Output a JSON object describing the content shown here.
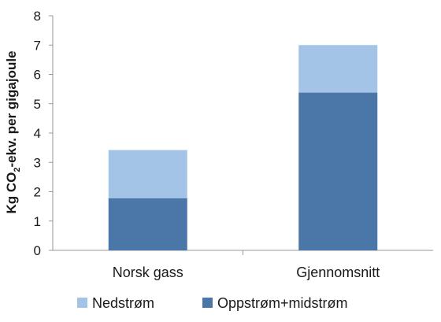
{
  "chart_data": {
    "type": "bar",
    "stacked": true,
    "categories": [
      "Norsk gass",
      "Gjennomsnitt"
    ],
    "series": [
      {
        "name": "Oppstrøm+midstrøm",
        "values": [
          1.78,
          5.38
        ],
        "color": "#4a76a8"
      },
      {
        "name": "Nedstrøm",
        "values": [
          1.64,
          1.62
        ],
        "color": "#a3c4e7"
      }
    ],
    "ylabel": {
      "main": "Kg CO",
      "sub": "2",
      "rest": "-ekv. per gigajoule"
    },
    "ylim": [
      0,
      8
    ],
    "yticks": [
      "0",
      "1",
      "2",
      "3",
      "4",
      "5",
      "6",
      "7",
      "8"
    ],
    "legend": {
      "position": "bottom",
      "order": [
        "Nedstrøm",
        "Oppstrøm+midstrøm"
      ]
    },
    "grid": false,
    "axis_color": "#999999"
  }
}
